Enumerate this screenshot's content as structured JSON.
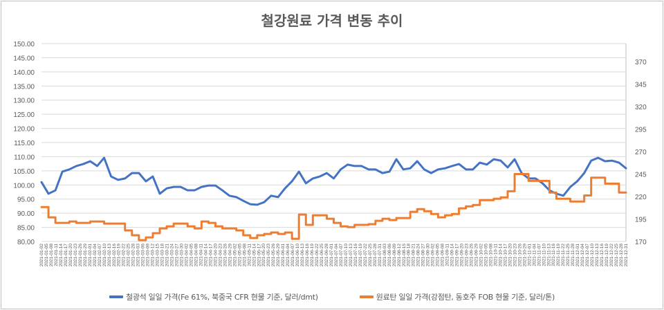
{
  "chart_data": {
    "type": "line",
    "title": "철강원료 가격 변동 추이",
    "x_range": [
      "2021-01-02",
      "2021-12-31"
    ],
    "y_left": {
      "lim": [
        80,
        150
      ],
      "ticks": [
        "80.00",
        "85.00",
        "90.00",
        "95.00",
        "100.00",
        "105.00",
        "110.00",
        "115.00",
        "120.00",
        "125.00",
        "130.00",
        "135.00",
        "140.00",
        "145.00",
        "150.00"
      ]
    },
    "y_right": {
      "lim": [
        170,
        390
      ],
      "ticks": [
        "170",
        "195",
        "220",
        "245",
        "270",
        "295",
        "320",
        "345",
        "370"
      ]
    },
    "grid": true,
    "legend_position": "bottom",
    "series": [
      {
        "name": "철광석 일일 가격(Fe 61%, 북중국 CFR 현물 기준, 달러/dmt)",
        "axis": "left",
        "color": "#4472C4",
        "values": [
          101.0,
          96.9,
          98.1,
          104.7,
          105.5,
          106.7,
          107.4,
          108.4,
          106.7,
          109.6,
          103.0,
          101.8,
          102.3,
          104.2,
          104.2,
          101.3,
          103.0,
          96.9,
          98.8,
          99.3,
          99.3,
          98.1,
          98.1,
          99.3,
          99.8,
          99.8,
          98.1,
          96.2,
          95.7,
          94.4,
          93.2,
          93.0,
          93.9,
          96.2,
          95.7,
          98.8,
          101.3,
          104.7,
          100.6,
          102.3,
          103.0,
          104.2,
          102.3,
          105.5,
          107.2,
          106.7,
          106.7,
          105.5,
          105.5,
          104.2,
          104.7,
          109.1,
          105.5,
          105.9,
          108.4,
          105.5,
          104.2,
          105.5,
          105.9,
          106.7,
          107.4,
          105.5,
          105.5,
          107.9,
          107.2,
          109.1,
          108.6,
          106.2,
          109.1,
          104.2,
          102.3,
          102.3,
          100.6,
          98.1,
          96.9,
          96.2,
          99.3,
          101.3,
          104.2,
          108.6,
          109.6,
          108.4,
          108.6,
          107.9,
          105.9
        ]
      },
      {
        "name": "원료탄 일일 가격(강점탄, 동호주 FOB 현물 기준, 달러/톤)",
        "axis": "right",
        "color": "#ED7D31",
        "step": true,
        "values": [
          208.3,
          196.8,
          190.7,
          190.7,
          192.2,
          190.7,
          190.7,
          192.2,
          192.2,
          189.9,
          189.9,
          189.9,
          182.3,
          176.9,
          171.5,
          174.5,
          179.2,
          184.5,
          186.8,
          189.9,
          189.9,
          186.8,
          184.5,
          192.2,
          190.7,
          186.8,
          184.5,
          184.5,
          182.3,
          176.9,
          173.8,
          176.9,
          178.4,
          180.0,
          178.4,
          180.0,
          173.0,
          199.9,
          188.5,
          199.1,
          199.1,
          195.3,
          190.7,
          186.8,
          186.0,
          188.5,
          188.5,
          189.2,
          193.0,
          195.3,
          193.8,
          196.1,
          196.1,
          203.0,
          206.0,
          203.7,
          200.6,
          196.8,
          199.1,
          200.6,
          206.8,
          209.0,
          210.6,
          216.0,
          216.0,
          217.5,
          219.0,
          225.9,
          245.0,
          245.0,
          237.4,
          237.4,
          237.4,
          224.4,
          217.5,
          217.5,
          214.4,
          214.4,
          221.2,
          241.0,
          241.0,
          234.3,
          234.3,
          224.4,
          224.4
        ]
      }
    ]
  }
}
